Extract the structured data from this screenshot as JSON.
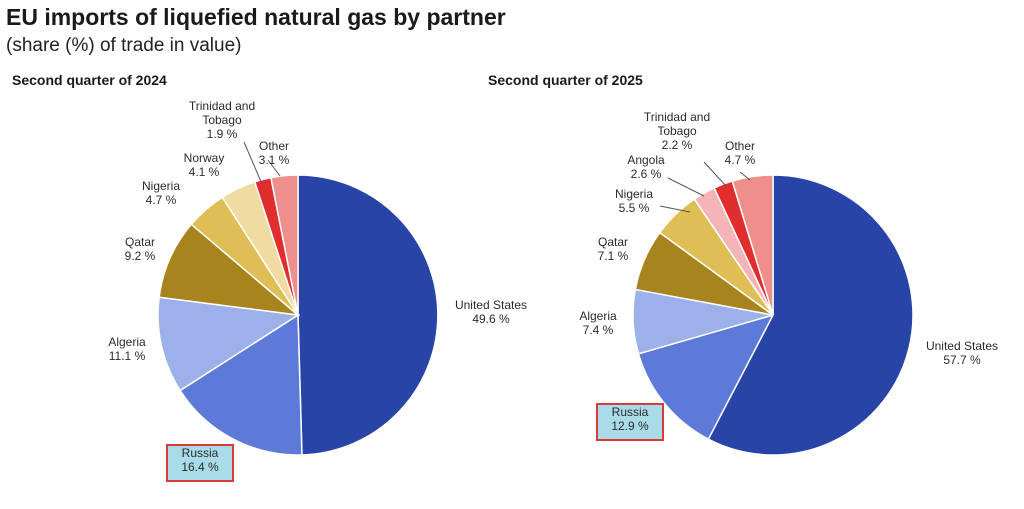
{
  "header": {
    "title": "EU imports of liquefied natural gas by partner",
    "subtitle": "(share (%) of trade in value)"
  },
  "colors": {
    "highlight_box": "#d93a3a",
    "highlight_fill": "#a9dbe9",
    "leader_line": "#555555"
  },
  "chart_data": [
    {
      "type": "pie",
      "title": "Second quarter of 2024",
      "start": "12 o'clock, clockwise",
      "slices": [
        {
          "label": "United States",
          "value_text": "49.6 %",
          "value": 49.6,
          "color": "#2744a6"
        },
        {
          "label": "Russia",
          "value_text": "16.4 %",
          "value": 16.4,
          "color": "#5d7ad8",
          "highlighted": true
        },
        {
          "label": "Algeria",
          "value_text": "11.1 %",
          "value": 11.1,
          "color": "#9db0ea"
        },
        {
          "label": "Qatar",
          "value_text": "9.2 %",
          "value": 9.2,
          "color": "#a8841e"
        },
        {
          "label": "Nigeria",
          "value_text": "4.7 %",
          "value": 4.7,
          "color": "#dfbf55"
        },
        {
          "label": "Norway",
          "value_text": "4.1 %",
          "value": 4.1,
          "color": "#f0dca0"
        },
        {
          "label": "Trinidad and\nTobago",
          "value_text": "1.9 %",
          "value": 1.9,
          "color": "#e02e2e"
        },
        {
          "label": "Other",
          "value_text": "3.1 %",
          "value": 3.1,
          "color": "#ef8f8b"
        }
      ]
    },
    {
      "type": "pie",
      "title": "Second quarter of 2025",
      "start": "12 o'clock, clockwise",
      "slices": [
        {
          "label": "United States",
          "value_text": "57.7 %",
          "value": 57.7,
          "color": "#2744a6"
        },
        {
          "label": "Russia",
          "value_text": "12.9 %",
          "value": 12.9,
          "color": "#5d7ad8",
          "highlighted": true
        },
        {
          "label": "Algeria",
          "value_text": "7.4 %",
          "value": 7.4,
          "color": "#9db0ea"
        },
        {
          "label": "Qatar",
          "value_text": "7.1 %",
          "value": 7.1,
          "color": "#a8841e"
        },
        {
          "label": "Nigeria",
          "value_text": "5.5 %",
          "value": 5.5,
          "color": "#dfbf55"
        },
        {
          "label": "Angola",
          "value_text": "2.6 %",
          "value": 2.6,
          "color": "#f5b5b8"
        },
        {
          "label": "Trinidad and\nTobago",
          "value_text": "2.2 %",
          "value": 2.2,
          "color": "#e02e2e"
        },
        {
          "label": "Other",
          "value_text": "4.7 %",
          "value": 4.7,
          "color": "#ef8f8b"
        }
      ]
    }
  ]
}
